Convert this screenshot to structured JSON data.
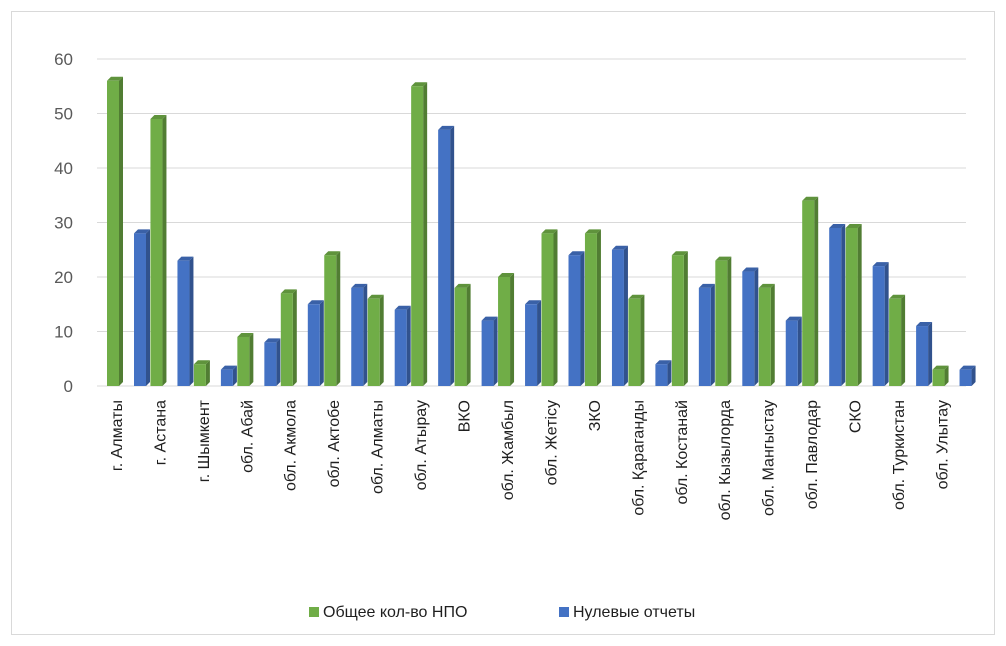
{
  "chart_data": {
    "type": "bar",
    "title": "",
    "xlabel": "",
    "ylabel": "",
    "ylim": [
      0,
      60
    ],
    "yticks": [
      0,
      10,
      20,
      30,
      40,
      50,
      60
    ],
    "grid": true,
    "legend_position": "bottom",
    "categories": [
      "г. Алматы",
      "г. Астана",
      "г. Шымкент",
      "обл. Абай",
      "обл. Акмола",
      "обл. Актобе",
      "обл. Алматы",
      "обл. Атырау",
      "ВКО",
      "обл. Жамбыл",
      "обл. Жетісу",
      "ЗКО",
      "обл. Қараганды",
      "обл. Костанай",
      "обл. Кызылорда",
      "обл. Мангыстау",
      "обл. Павлодар",
      "СКО",
      "обл. Туркистан",
      "обл. Улытау"
    ],
    "series": [
      {
        "name": "Общее кол-во НПО",
        "color": "#70ad47",
        "values": [
          56,
          49,
          4,
          9,
          17,
          24,
          16,
          55,
          18,
          20,
          28,
          28,
          16,
          24,
          23,
          18,
          34,
          29,
          16,
          3
        ]
      },
      {
        "name": "Нулевые отчеты",
        "color": "#4472c4",
        "values": [
          28,
          23,
          3,
          8,
          15,
          18,
          14,
          47,
          12,
          15,
          24,
          25,
          4,
          18,
          21,
          12,
          29,
          22,
          11,
          3
        ]
      }
    ]
  }
}
